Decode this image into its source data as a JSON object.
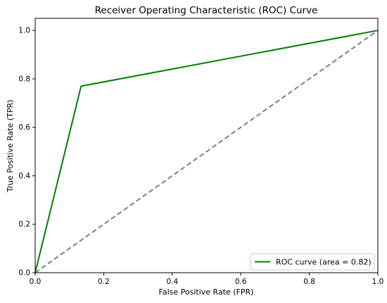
{
  "chart_data": {
    "type": "line",
    "title": "Receiver Operating Characteristic (ROC) Curve",
    "xlabel": "False Positive Rate (FPR)",
    "ylabel": "True Positive Rate (TPR)",
    "xlim": [
      0.0,
      1.0
    ],
    "ylim": [
      0.0,
      1.05
    ],
    "x_ticks": [
      0.0,
      0.2,
      0.4,
      0.6,
      0.8,
      1.0
    ],
    "y_ticks": [
      0.0,
      0.2,
      0.4,
      0.6,
      0.8,
      1.0
    ],
    "x_tick_labels": [
      "0.0",
      "0.2",
      "0.4",
      "0.6",
      "0.8",
      "1.0"
    ],
    "y_tick_labels": [
      "0.0",
      "0.2",
      "0.4",
      "0.6",
      "0.8",
      "1.0"
    ],
    "grid": false,
    "legend_position": "lower-right",
    "series": [
      {
        "name": "ROC curve (area = 0.82)",
        "color": "#008000",
        "style": "solid",
        "x": [
          0.0,
          0.134,
          1.0
        ],
        "y": [
          0.0,
          0.77,
          1.0
        ]
      },
      {
        "color": "#808080",
        "style": "dashed",
        "x": [
          0.0,
          1.0
        ],
        "y": [
          0.0,
          1.0
        ]
      }
    ]
  }
}
